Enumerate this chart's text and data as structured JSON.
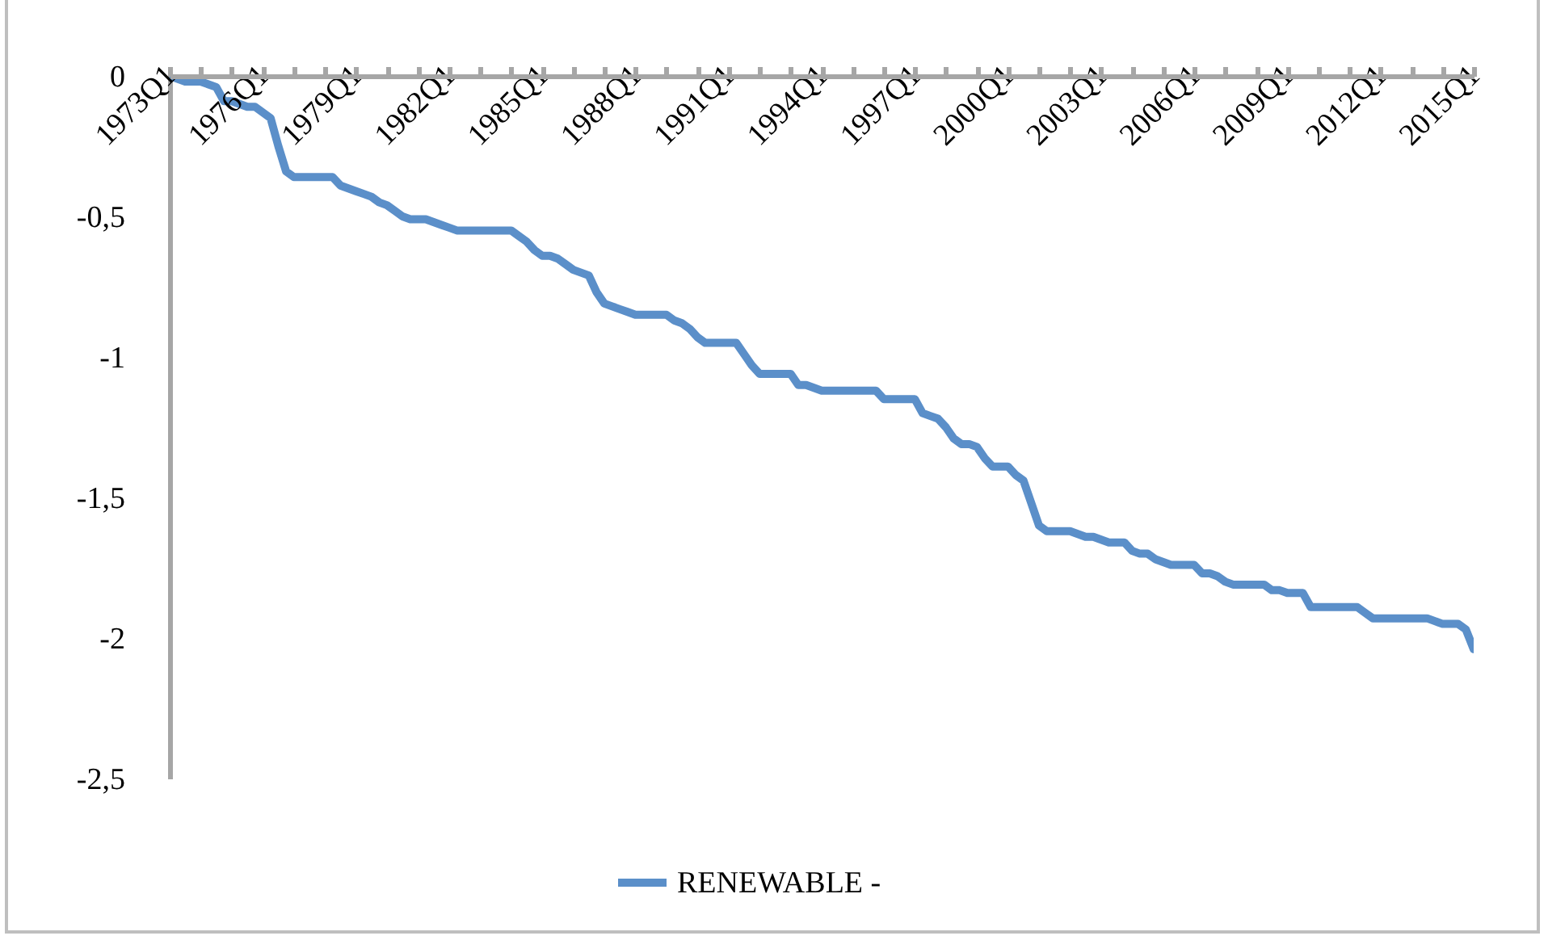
{
  "chart_data": {
    "type": "line",
    "legend": "bottom",
    "categories": [
      "1973Q1",
      null,
      null,
      null,
      null,
      null,
      null,
      null,
      null,
      null,
      null,
      null,
      "1976Q1",
      null,
      null,
      null,
      null,
      null,
      null,
      null,
      null,
      null,
      null,
      null,
      "1979Q1",
      null,
      null,
      null,
      null,
      null,
      null,
      null,
      null,
      null,
      null,
      null,
      "1982Q1",
      null,
      null,
      null,
      null,
      null,
      null,
      null,
      null,
      null,
      null,
      null,
      "1985Q1",
      null,
      null,
      null,
      null,
      null,
      null,
      null,
      null,
      null,
      null,
      null,
      "1988Q1",
      null,
      null,
      null,
      null,
      null,
      null,
      null,
      null,
      null,
      null,
      null,
      "1991Q1",
      null,
      null,
      null,
      null,
      null,
      null,
      null,
      null,
      null,
      null,
      null,
      "1994Q1",
      null,
      null,
      null,
      null,
      null,
      null,
      null,
      null,
      null,
      null,
      null,
      "1997Q1",
      null,
      null,
      null,
      null,
      null,
      null,
      null,
      null,
      null,
      null,
      null,
      "2000Q1",
      null,
      null,
      null,
      null,
      null,
      null,
      null,
      null,
      null,
      null,
      null,
      "2003Q1",
      null,
      null,
      null,
      null,
      null,
      null,
      null,
      null,
      null,
      null,
      null,
      "2006Q1",
      null,
      null,
      null,
      null,
      null,
      null,
      null,
      null,
      null,
      null,
      null,
      "2009Q1",
      null,
      null,
      null,
      null,
      null,
      null,
      null,
      null,
      null,
      null,
      null,
      "2012Q1",
      null,
      null,
      null,
      null,
      null,
      null,
      null,
      null,
      null,
      null,
      null,
      "2015Q1"
    ],
    "ylim": [
      -2.5,
      0
    ],
    "yticks": [
      {
        "value": -2.5,
        "label": "-2,5"
      },
      -2,
      {
        "value": -1.5,
        "label": "-1,5"
      },
      -1,
      {
        "value": -0.5,
        "label": "-0,5"
      },
      0
    ],
    "series": [
      {
        "name": "RENEWABLE -",
        "color": "#5b8fc9",
        "values": [
          0,
          -0.01,
          -0.02,
          -0.02,
          -0.02,
          -0.03,
          -0.04,
          -0.09,
          -0.09,
          -0.1,
          -0.11,
          -0.11,
          -0.13,
          -0.15,
          -0.25,
          -0.34,
          -0.36,
          -0.36,
          -0.36,
          -0.36,
          -0.36,
          -0.36,
          -0.39,
          -0.4,
          -0.41,
          -0.42,
          -0.43,
          -0.45,
          -0.46,
          -0.48,
          -0.5,
          -0.51,
          -0.51,
          -0.51,
          -0.52,
          -0.53,
          -0.54,
          -0.55,
          -0.55,
          -0.55,
          -0.55,
          -0.55,
          -0.55,
          -0.55,
          -0.55,
          -0.57,
          -0.59,
          -0.62,
          -0.64,
          -0.64,
          -0.65,
          -0.67,
          -0.69,
          -0.7,
          -0.71,
          -0.77,
          -0.81,
          -0.82,
          -0.83,
          -0.84,
          -0.85,
          -0.85,
          -0.85,
          -0.85,
          -0.85,
          -0.87,
          -0.88,
          -0.9,
          -0.93,
          -0.95,
          -0.95,
          -0.95,
          -0.95,
          -0.95,
          -0.99,
          -1.03,
          -1.06,
          -1.06,
          -1.06,
          -1.06,
          -1.06,
          -1.1,
          -1.1,
          -1.11,
          -1.12,
          -1.12,
          -1.12,
          -1.12,
          -1.12,
          -1.12,
          -1.12,
          -1.12,
          -1.15,
          -1.15,
          -1.15,
          -1.15,
          -1.15,
          -1.2,
          -1.21,
          -1.22,
          -1.25,
          -1.29,
          -1.31,
          -1.31,
          -1.32,
          -1.36,
          -1.39,
          -1.39,
          -1.39,
          -1.42,
          -1.44,
          -1.52,
          -1.6,
          -1.62,
          -1.62,
          -1.62,
          -1.62,
          -1.63,
          -1.64,
          -1.64,
          -1.65,
          -1.66,
          -1.66,
          -1.66,
          -1.69,
          -1.7,
          -1.7,
          -1.72,
          -1.73,
          -1.74,
          -1.74,
          -1.74,
          -1.74,
          -1.77,
          -1.77,
          -1.78,
          -1.8,
          -1.81,
          -1.81,
          -1.81,
          -1.81,
          -1.81,
          -1.83,
          -1.83,
          -1.84,
          -1.84,
          -1.84,
          -1.89,
          -1.89,
          -1.89,
          -1.89,
          -1.89,
          -1.89,
          -1.89,
          -1.91,
          -1.93,
          -1.93,
          -1.93,
          -1.93,
          -1.93,
          -1.93,
          -1.93,
          -1.93,
          -1.94,
          -1.95,
          -1.95,
          -1.95,
          -1.97,
          -2.04
        ]
      }
    ]
  }
}
